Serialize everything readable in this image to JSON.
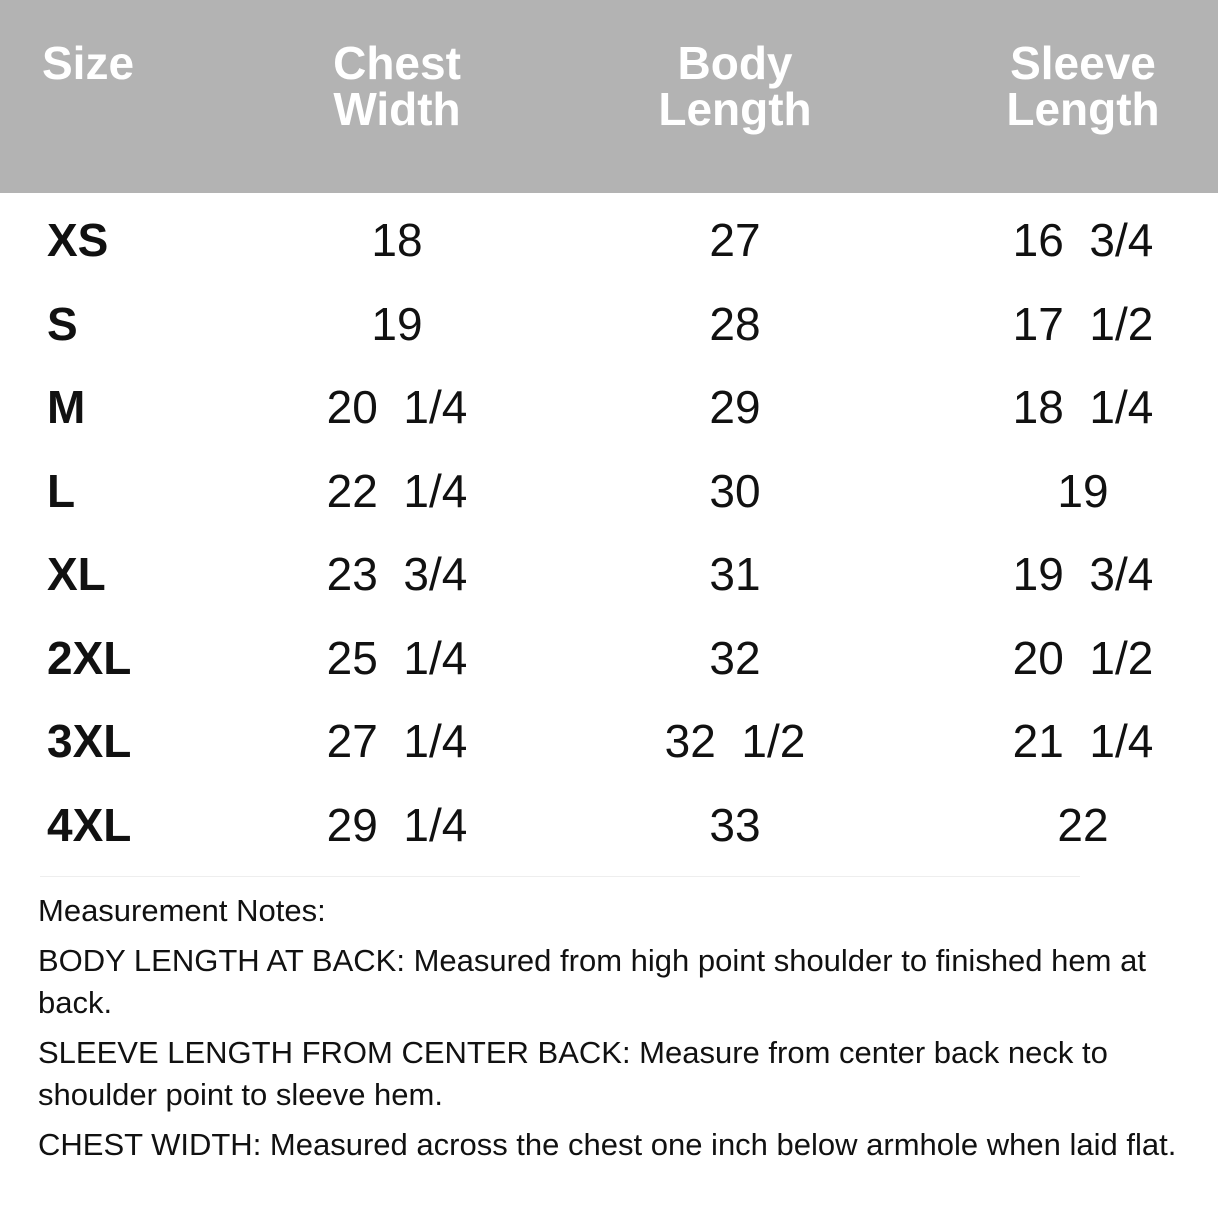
{
  "table": {
    "headers": [
      "Size",
      "Chest\nWidth",
      "Body\nLength",
      "Sleeve\nLength"
    ],
    "rows": [
      [
        "XS",
        "18",
        "27",
        "16  3/4"
      ],
      [
        "S",
        "19",
        "28",
        "17  1/2"
      ],
      [
        "M",
        "20  1/4",
        "29",
        "18  1/4"
      ],
      [
        "L",
        "22  1/4",
        "30",
        "19"
      ],
      [
        "XL",
        "23  3/4",
        "31",
        "19  3/4"
      ],
      [
        "2XL",
        "25  1/4",
        "32",
        "20  1/2"
      ],
      [
        "3XL",
        "27  1/4",
        "32  1/2",
        "21  1/4"
      ],
      [
        "4XL",
        "29  1/4",
        "33",
        "22"
      ]
    ],
    "header_color": "#b3b3b3"
  },
  "notes": {
    "title": "Measurement Notes:",
    "items": [
      {
        "label": "BODY LENGTH AT BACK:",
        "text": " Measured from high point shoulder to finished hem at back."
      },
      {
        "label": "SLEEVE LENGTH FROM CENTER BACK:",
        "text": " Measure from center back neck to shoulder point to sleeve hem."
      },
      {
        "label": "CHEST WIDTH:",
        "text": " Measured across the chest one inch below armhole when laid flat."
      }
    ]
  }
}
